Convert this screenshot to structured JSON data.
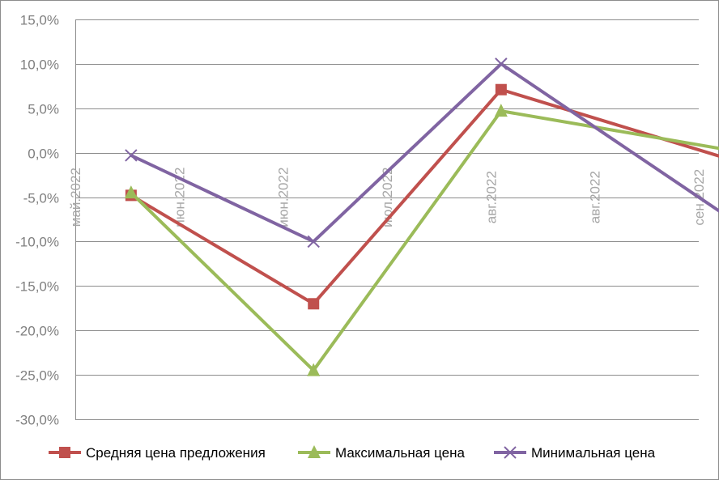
{
  "chart_data": {
    "type": "line",
    "title": "",
    "xlabel": "",
    "ylabel": "",
    "ylim": [
      -30,
      15
    ],
    "ytick_values": [
      15,
      10,
      5,
      0,
      -5,
      -10,
      -15,
      -20,
      -25,
      -30
    ],
    "ytick_labels": [
      "15,0%",
      "10,0%",
      "5,0%",
      "0,0%",
      "-5,0%",
      "-10,0%",
      "-15,0%",
      "-20,0%",
      "-25,0%",
      "-30,0%"
    ],
    "xtick_labels": [
      "май.2022",
      "июн.2022",
      "июн.2022",
      "июл.2022",
      "авг.2022",
      "авг.2022",
      "сен.2022"
    ],
    "grid": true,
    "legend_position": "bottom",
    "series": [
      {
        "name": "Средняя цена предложения",
        "color": "#c0504d",
        "marker": "square",
        "x": [
          "2022-05-12",
          "2022-06-17",
          "2022-07-24",
          "2022-09-08"
        ],
        "values": [
          -4.8,
          -17.0,
          7.1,
          -0.9
        ]
      },
      {
        "name": "Максимальная цена",
        "color": "#9bbb59",
        "marker": "triangle",
        "x": [
          "2022-05-12",
          "2022-06-17",
          "2022-07-24",
          "2022-09-08"
        ],
        "values": [
          -4.5,
          -24.5,
          4.7,
          0.2
        ]
      },
      {
        "name": "Минимальная цена",
        "color": "#8064a2",
        "marker": "x",
        "x": [
          "2022-05-12",
          "2022-06-17",
          "2022-07-24",
          "2022-09-08"
        ],
        "values": [
          -0.3,
          -10.0,
          10.0,
          -7.7
        ]
      }
    ]
  }
}
